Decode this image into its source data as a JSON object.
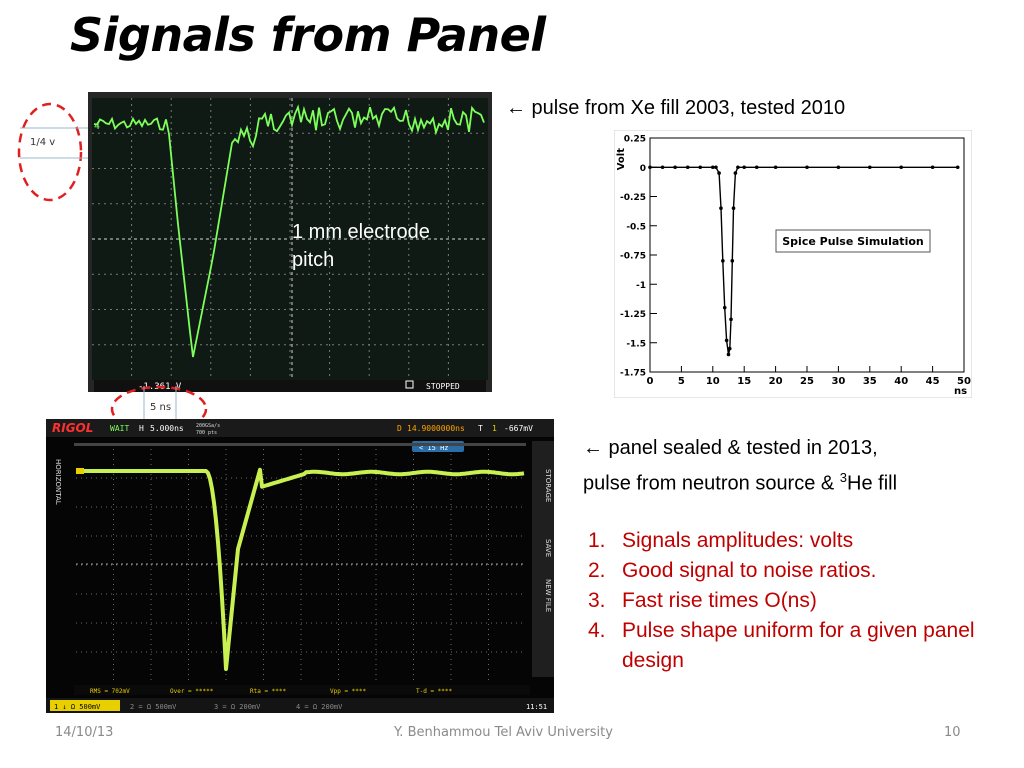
{
  "slide": {
    "title": "Signals from Panel",
    "ref_top": "← pulse from Xe fill  2003,  tested 2010",
    "ref_bottom_line1": "←  panel sealed & tested in 2013,",
    "ref_bottom_line2_a": "pulse from neutron source & ",
    "ref_bottom_sup": "3",
    "ref_bottom_line2_b": "He fill",
    "electrode_label_1": "1 mm electrode",
    "electrode_label_2": "pitch",
    "scale_volt": "1/4 v",
    "scale_time": "5 ns",
    "findings": [
      {
        "num": "1.",
        "text": "Signals amplitudes: volts"
      },
      {
        "num": "2.",
        "text": "Good signal to noise ratios."
      },
      {
        "num": "3.",
        "text": "Fast rise times   O(ns)"
      },
      {
        "num": "4.",
        "text": "Pulse shape uniform for a given panel design"
      }
    ],
    "footer_date": "14/10/13",
    "footer_author": "Y. Benhammou Tel Aviv University",
    "footer_page": "10"
  },
  "scope1": {
    "ch_marker": "4",
    "readout": "-1.361 V",
    "status": "STOPPED",
    "trace_color": "#7dff5a"
  },
  "scope2": {
    "brand": "RIGOL",
    "mode": "WAIT",
    "h_label": "H",
    "timebase": "5.000ns",
    "srate": "200GSa/s",
    "mpts": "700 pts",
    "d_label": "D",
    "delay": "14.9000000ns",
    "trig_label": "T",
    "trig_ch": "1",
    "trig_level": "-667mV",
    "freq": "< 15 Hz",
    "side_tabs": [
      "HORIZONTAL",
      "STORAGE",
      "SAVE",
      "NEW FILE"
    ],
    "meas_rms": "RMS = 702mV",
    "meas_over": "Over = *****",
    "meas_rta": "Rta = ****",
    "meas_vpp": "Vpp = ****",
    "meas_tfd": "T-d = ****",
    "ch1": "1 ↓ Ω 500mV",
    "ch2": "2 = Ω 500mV",
    "ch3": "3 = Ω 200mV",
    "ch4": "4 = Ω 200mV",
    "clock": "11:51",
    "trace_color": "#c8f050"
  },
  "chart_data": {
    "type": "line",
    "title": "Spice Pulse Simulation",
    "xlabel": "ns",
    "ylabel": "Volt",
    "xlim": [
      0,
      50
    ],
    "ylim": [
      -1.75,
      0.25
    ],
    "xticks": [
      0,
      5,
      10,
      15,
      20,
      25,
      30,
      35,
      40,
      45,
      50
    ],
    "yticks": [
      0.25,
      0,
      -0.25,
      -0.5,
      -0.75,
      -1,
      -1.25,
      -1.5,
      -1.75
    ],
    "grid": false,
    "series": [
      {
        "x": [
          0,
          2,
          4,
          6,
          8,
          10,
          10.5,
          11,
          11.3,
          11.6,
          11.9,
          12.2,
          12.5,
          12.7,
          12.9,
          13.1,
          13.3,
          13.6,
          14,
          15,
          17,
          20,
          25,
          30,
          35,
          40,
          45,
          49
        ],
        "values": [
          0,
          0,
          0,
          0,
          0,
          0,
          0,
          -0.05,
          -0.35,
          -0.8,
          -1.2,
          -1.48,
          -1.6,
          -1.55,
          -1.3,
          -0.8,
          -0.35,
          -0.05,
          0,
          0,
          0,
          0,
          0,
          0,
          0,
          0,
          0,
          0
        ]
      }
    ]
  }
}
